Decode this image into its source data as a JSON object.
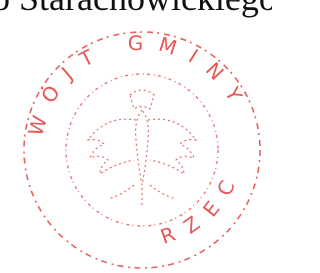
{
  "document": {
    "header_text": "o Starachowickiego.",
    "seal": {
      "text_top": "WÓJT GMINY",
      "text_bottom": "RZEC"
    }
  }
}
